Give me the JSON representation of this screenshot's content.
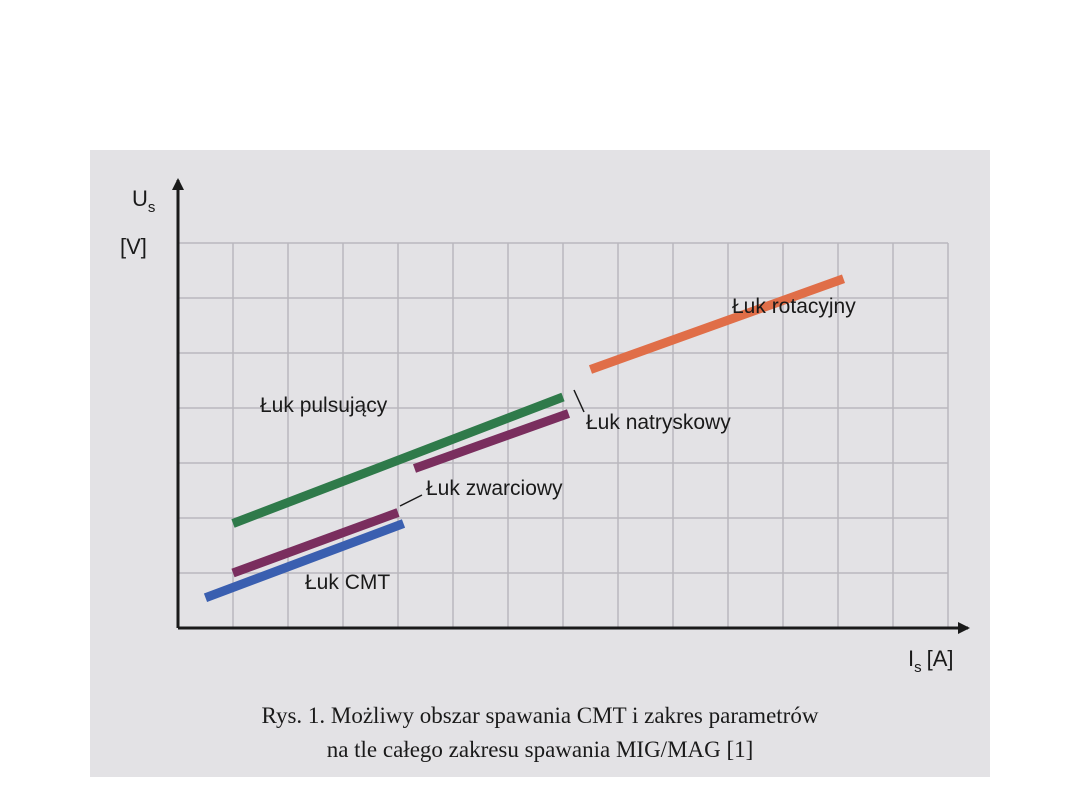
{
  "colors": {
    "panel": "#e3e2e5",
    "grid": "#b9b8be",
    "axis": "#1a1a1a",
    "pulsujacy": "#2f7a4a",
    "natryskowy": "#7a2e5e",
    "zwarciowy": "#7a2e5e",
    "cmt": "#3a5fb0",
    "rotacyjny": "#e06e48"
  },
  "chart_data": {
    "type": "line",
    "title": "",
    "xlabel": "I",
    "xlabel_sub": "s",
    "xlabel_unit": "[A]",
    "ylabel": "U",
    "ylabel_sub": "s",
    "ylabel_unit": "[V]",
    "xlim": [
      0,
      14
    ],
    "ylim": [
      0,
      7
    ],
    "grid": true,
    "series": [
      {
        "name": "Łuk CMT",
        "color": "cmt",
        "x": [
          0.5,
          4.1
        ],
        "y": [
          0.55,
          1.9
        ]
      },
      {
        "name": "Łuk zwarciowy",
        "color": "zwarciowy",
        "x": [
          1.0,
          4.0
        ],
        "y": [
          1.0,
          2.1
        ]
      },
      {
        "name": "Łuk pulsujący",
        "color": "pulsujacy",
        "x": [
          1.0,
          7.0
        ],
        "y": [
          1.9,
          4.2
        ]
      },
      {
        "name": "Łuk natryskowy",
        "color": "natryskowy",
        "x": [
          4.3,
          7.1
        ],
        "y": [
          2.9,
          3.9
        ]
      },
      {
        "name": "Łuk rotacyjny",
        "color": "rotacyjny",
        "x": [
          7.5,
          12.1
        ],
        "y": [
          4.7,
          6.35
        ]
      }
    ]
  },
  "caption": {
    "line1": "Rys. 1. Możliwy obszar spawania CMT i zakres parametrów",
    "line2": "na tle całego zakresu spawania MIG/MAG [1]"
  }
}
